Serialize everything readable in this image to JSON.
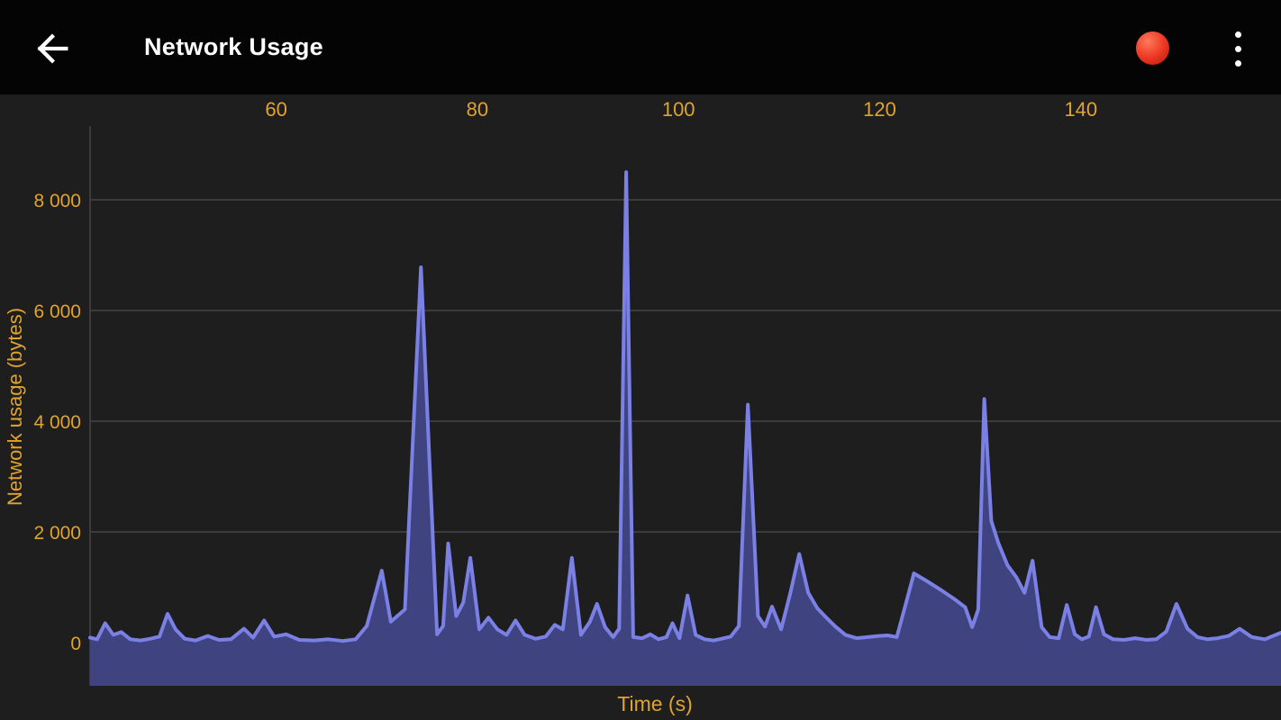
{
  "app": {
    "title": "Network Usage"
  },
  "colors": {
    "toolbar_bg": "#040404",
    "background": "#1e1e1e",
    "grid": "#3b3b3b",
    "title_text": "#ffffff",
    "record_red": "#ee3a24"
  },
  "chart_data": {
    "type": "area",
    "title": "",
    "xlabel": "Time (s)",
    "ylabel": "Network usage (bytes)",
    "x_ticks": [
      60,
      80,
      100,
      120,
      140
    ],
    "x_tick_labels": [
      "60",
      "80",
      "100",
      "120",
      "140"
    ],
    "y_ticks": [
      0,
      2000,
      4000,
      6000,
      8000
    ],
    "y_tick_labels": [
      "0",
      "2 000",
      "4 000",
      "6 000",
      "8 000"
    ],
    "xlim": [
      41.5,
      159.9
    ],
    "ylim": [
      -780,
      9333
    ],
    "grid": "horizontal",
    "legend": "none",
    "axis_label_color": "#e0a42e",
    "line_color": "#7b80e4",
    "fill_color": "#3f4380",
    "series": [
      {
        "name": "Network usage (bytes)",
        "points": [
          [
            41.5,
            90
          ],
          [
            42.2,
            60
          ],
          [
            43.0,
            350
          ],
          [
            43.8,
            140
          ],
          [
            44.6,
            190
          ],
          [
            45.5,
            60
          ],
          [
            46.5,
            40
          ],
          [
            47.5,
            70
          ],
          [
            48.4,
            110
          ],
          [
            49.2,
            520
          ],
          [
            50.0,
            240
          ],
          [
            50.9,
            70
          ],
          [
            52.0,
            40
          ],
          [
            53.2,
            120
          ],
          [
            54.3,
            50
          ],
          [
            55.5,
            60
          ],
          [
            56.8,
            250
          ],
          [
            57.7,
            90
          ],
          [
            58.8,
            400
          ],
          [
            59.8,
            110
          ],
          [
            61.0,
            150
          ],
          [
            62.3,
            50
          ],
          [
            63.8,
            40
          ],
          [
            65.2,
            60
          ],
          [
            66.6,
            30
          ],
          [
            67.9,
            60
          ],
          [
            69.0,
            300
          ],
          [
            70.5,
            1300
          ],
          [
            71.4,
            380
          ],
          [
            72.8,
            600
          ],
          [
            74.4,
            6780
          ],
          [
            76.0,
            150
          ],
          [
            76.6,
            300
          ],
          [
            77.1,
            1790
          ],
          [
            77.9,
            480
          ],
          [
            78.6,
            720
          ],
          [
            79.3,
            1530
          ],
          [
            80.2,
            240
          ],
          [
            81.1,
            450
          ],
          [
            82.0,
            240
          ],
          [
            82.9,
            140
          ],
          [
            83.8,
            400
          ],
          [
            84.7,
            140
          ],
          [
            85.8,
            70
          ],
          [
            86.8,
            110
          ],
          [
            87.7,
            320
          ],
          [
            88.5,
            240
          ],
          [
            89.4,
            1530
          ],
          [
            90.3,
            140
          ],
          [
            91.2,
            380
          ],
          [
            91.9,
            700
          ],
          [
            92.7,
            280
          ],
          [
            93.5,
            100
          ],
          [
            94.1,
            250
          ],
          [
            94.8,
            8500
          ],
          [
            95.5,
            100
          ],
          [
            96.4,
            80
          ],
          [
            97.2,
            150
          ],
          [
            98.0,
            60
          ],
          [
            98.8,
            100
          ],
          [
            99.4,
            350
          ],
          [
            100.1,
            80
          ],
          [
            100.9,
            850
          ],
          [
            101.7,
            140
          ],
          [
            102.6,
            60
          ],
          [
            103.5,
            40
          ],
          [
            104.3,
            70
          ],
          [
            105.2,
            110
          ],
          [
            106.0,
            300
          ],
          [
            106.9,
            4300
          ],
          [
            107.9,
            480
          ],
          [
            108.6,
            290
          ],
          [
            109.3,
            650
          ],
          [
            110.2,
            240
          ],
          [
            111.1,
            880
          ],
          [
            112.0,
            1600
          ],
          [
            112.9,
            900
          ],
          [
            113.8,
            620
          ],
          [
            114.7,
            450
          ],
          [
            115.6,
            290
          ],
          [
            116.6,
            140
          ],
          [
            117.7,
            80
          ],
          [
            118.8,
            100
          ],
          [
            119.9,
            120
          ],
          [
            120.8,
            130
          ],
          [
            121.7,
            100
          ],
          [
            122.6,
            700
          ],
          [
            123.4,
            1250
          ],
          [
            124.8,
            1100
          ],
          [
            126.1,
            950
          ],
          [
            127.4,
            790
          ],
          [
            128.5,
            640
          ],
          [
            129.2,
            280
          ],
          [
            129.8,
            600
          ],
          [
            130.4,
            4400
          ],
          [
            131.1,
            2200
          ],
          [
            131.8,
            1800
          ],
          [
            132.7,
            1400
          ],
          [
            133.6,
            1180
          ],
          [
            134.4,
            900
          ],
          [
            135.2,
            1480
          ],
          [
            136.1,
            280
          ],
          [
            136.9,
            100
          ],
          [
            137.8,
            80
          ],
          [
            138.6,
            680
          ],
          [
            139.4,
            150
          ],
          [
            140.1,
            60
          ],
          [
            140.8,
            110
          ],
          [
            141.5,
            640
          ],
          [
            142.3,
            150
          ],
          [
            143.2,
            60
          ],
          [
            144.3,
            50
          ],
          [
            145.4,
            80
          ],
          [
            146.5,
            50
          ],
          [
            147.5,
            60
          ],
          [
            148.5,
            200
          ],
          [
            149.5,
            700
          ],
          [
            150.6,
            250
          ],
          [
            151.6,
            100
          ],
          [
            152.6,
            60
          ],
          [
            153.6,
            80
          ],
          [
            154.7,
            120
          ],
          [
            155.8,
            250
          ],
          [
            157.0,
            100
          ],
          [
            158.3,
            60
          ],
          [
            159.9,
            180
          ]
        ]
      }
    ]
  }
}
